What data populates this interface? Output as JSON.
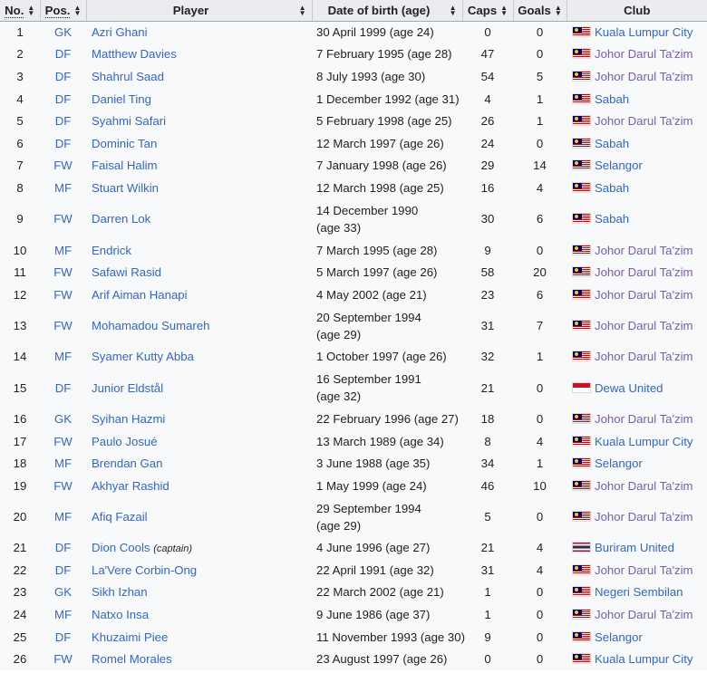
{
  "headers": {
    "no": "No.",
    "pos": "Pos.",
    "player": "Player",
    "dob": "Date of birth (age)",
    "caps": "Caps",
    "goals": "Goals",
    "club": "Club"
  },
  "colors": {
    "link": "#3366cc",
    "visited_link": "#795cb2",
    "header_bg": "#eaecf0",
    "row_bg": "#f8f9fa"
  },
  "rows": [
    {
      "no": "1",
      "pos": "GK",
      "player": "Azri Ghani",
      "dob": "30 April 1999 (age 24)",
      "caps": "0",
      "goals": "0",
      "flag": "my",
      "club": "Kuala Lumpur City"
    },
    {
      "no": "2",
      "pos": "DF",
      "player": "Matthew Davies",
      "dob": "7 February 1995 (age 28)",
      "caps": "47",
      "goals": "0",
      "flag": "my",
      "club": "Johor Darul Ta'zim",
      "visited": true
    },
    {
      "no": "3",
      "pos": "DF",
      "player": "Shahrul Saad",
      "dob": "8 July 1993 (age 30)",
      "caps": "54",
      "goals": "5",
      "flag": "my",
      "club": "Johor Darul Ta'zim",
      "visited": true
    },
    {
      "no": "4",
      "pos": "DF",
      "player": "Daniel Ting",
      "dob": "1 December 1992 (age 31)",
      "caps": "4",
      "goals": "1",
      "flag": "my",
      "club": "Sabah"
    },
    {
      "no": "5",
      "pos": "DF",
      "player": "Syahmi Safari",
      "dob": "5 February 1998 (age 25)",
      "caps": "26",
      "goals": "1",
      "flag": "my",
      "club": "Johor Darul Ta'zim",
      "visited": true
    },
    {
      "no": "6",
      "pos": "DF",
      "player": "Dominic Tan",
      "dob": "12 March 1997 (age 26)",
      "caps": "24",
      "goals": "0",
      "flag": "my",
      "club": "Sabah"
    },
    {
      "no": "7",
      "pos": "FW",
      "player": "Faisal Halim",
      "dob": "7 January 1998 (age 26)",
      "caps": "29",
      "goals": "14",
      "flag": "my",
      "club": "Selangor"
    },
    {
      "no": "8",
      "pos": "MF",
      "player": "Stuart Wilkin",
      "dob": "12 March 1998 (age 25)",
      "caps": "16",
      "goals": "4",
      "flag": "my",
      "club": "Sabah"
    },
    {
      "no": "9",
      "pos": "FW",
      "player": "Darren Lok",
      "dob": "14 December 1990 (age 33)",
      "wrap": true,
      "caps": "30",
      "goals": "6",
      "flag": "my",
      "club": "Sabah"
    },
    {
      "no": "10",
      "pos": "MF",
      "player": "Endrick",
      "dob": "7 March 1995 (age 28)",
      "caps": "9",
      "goals": "0",
      "flag": "my",
      "club": "Johor Darul Ta'zim",
      "visited": true
    },
    {
      "no": "11",
      "pos": "FW",
      "player": "Safawi Rasid",
      "dob": "5 March 1997 (age 26)",
      "caps": "58",
      "goals": "20",
      "flag": "my",
      "club": "Johor Darul Ta'zim",
      "visited": true
    },
    {
      "no": "12",
      "pos": "FW",
      "player": "Arif Aiman Hanapi",
      "dob": "4 May 2002 (age 21)",
      "caps": "23",
      "goals": "6",
      "flag": "my",
      "club": "Johor Darul Ta'zim",
      "visited": true
    },
    {
      "no": "13",
      "pos": "FW",
      "player": "Mohamadou Sumareh",
      "dob": "20 September 1994 (age 29)",
      "wrap": true,
      "caps": "31",
      "goals": "7",
      "flag": "my",
      "club": "Johor Darul Ta'zim",
      "visited": true
    },
    {
      "no": "14",
      "pos": "MF",
      "player": "Syamer Kutty Abba",
      "dob": "1 October 1997 (age 26)",
      "caps": "32",
      "goals": "1",
      "flag": "my",
      "club": "Johor Darul Ta'zim",
      "visited": true
    },
    {
      "no": "15",
      "pos": "DF",
      "player": "Junior Eldstål",
      "dob": "16 September 1991 (age 32)",
      "wrap": true,
      "caps": "21",
      "goals": "0",
      "flag": "id",
      "club": "Dewa United"
    },
    {
      "no": "16",
      "pos": "GK",
      "player": "Syihan Hazmi",
      "dob": "22 February 1996 (age 27)",
      "caps": "18",
      "goals": "0",
      "flag": "my",
      "club": "Johor Darul Ta'zim",
      "visited": true
    },
    {
      "no": "17",
      "pos": "FW",
      "player": "Paulo Josué",
      "dob": "13 March 1989 (age 34)",
      "caps": "8",
      "goals": "4",
      "flag": "my",
      "club": "Kuala Lumpur City"
    },
    {
      "no": "18",
      "pos": "MF",
      "player": "Brendan Gan",
      "dob": "3 June 1988 (age 35)",
      "caps": "34",
      "goals": "1",
      "flag": "my",
      "club": "Selangor"
    },
    {
      "no": "19",
      "pos": "FW",
      "player": "Akhyar Rashid",
      "dob": "1 May 1999 (age 24)",
      "caps": "46",
      "goals": "10",
      "flag": "my",
      "club": "Johor Darul Ta'zim",
      "visited": true
    },
    {
      "no": "20",
      "pos": "MF",
      "player": "Afiq Fazail",
      "dob": "29 September 1994 (age 29)",
      "wrap": true,
      "caps": "5",
      "goals": "0",
      "flag": "my",
      "club": "Johor Darul Ta'zim",
      "visited": true
    },
    {
      "no": "21",
      "pos": "DF",
      "player": "Dion Cools",
      "note": "(captain)",
      "dob": "4 June 1996 (age 27)",
      "caps": "21",
      "goals": "4",
      "flag": "th",
      "club": "Buriram United"
    },
    {
      "no": "22",
      "pos": "DF",
      "player": "La'Vere Corbin-Ong",
      "dob": "22 April 1991 (age 32)",
      "caps": "31",
      "goals": "4",
      "flag": "my",
      "club": "Johor Darul Ta'zim",
      "visited": true
    },
    {
      "no": "23",
      "pos": "GK",
      "player": "Sikh Izhan",
      "dob": "22 March 2002 (age 21)",
      "caps": "1",
      "goals": "0",
      "flag": "my",
      "club": "Negeri Sembilan"
    },
    {
      "no": "24",
      "pos": "MF",
      "player": "Natxo Insa",
      "dob": "9 June 1986 (age 37)",
      "caps": "1",
      "goals": "0",
      "flag": "my",
      "club": "Johor Darul Ta'zim",
      "visited": true
    },
    {
      "no": "25",
      "pos": "DF",
      "player": "Khuzaimi Piee",
      "dob": "11 November 1993 (age 30)",
      "caps": "9",
      "goals": "0",
      "flag": "my",
      "club": "Selangor"
    },
    {
      "no": "26",
      "pos": "FW",
      "player": "Romel Morales",
      "dob": "23 August 1997 (age 26)",
      "caps": "0",
      "goals": "0",
      "flag": "my",
      "club": "Kuala Lumpur City"
    }
  ]
}
